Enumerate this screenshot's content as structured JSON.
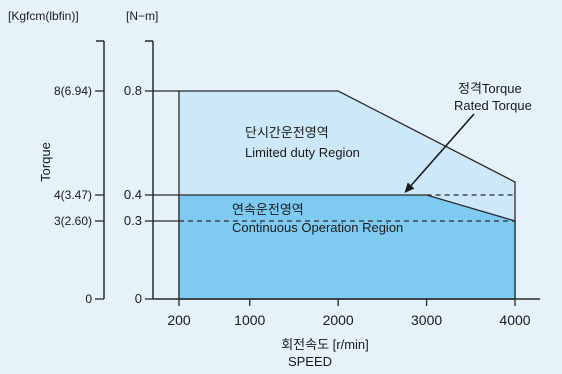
{
  "chart_data": {
    "type": "area",
    "title": "",
    "xlabel_korean": "회전속도 [r/min]",
    "xlabel": "SPEED",
    "ylabel": "Torque",
    "unit_left": "[Kgfcm(lbfin)]",
    "unit_right": "[N−m]",
    "xlim": [
      200,
      4000
    ],
    "ylim": [
      0,
      0.8
    ],
    "x_ticks": [
      {
        "value": 200,
        "label": "200"
      },
      {
        "value": 1000,
        "label": "1000"
      },
      {
        "value": 2000,
        "label": "2000"
      },
      {
        "value": 3000,
        "label": "3000"
      },
      {
        "value": 4000,
        "label": "4000"
      }
    ],
    "y_ticks_right": [
      {
        "value": 0.8,
        "label": "0.8"
      },
      {
        "value": 0.4,
        "label": "0.4"
      },
      {
        "value": 0.3,
        "label": "0.3"
      },
      {
        "value": 0,
        "label": "0"
      }
    ],
    "y_ticks_left": [
      {
        "value": 0.8,
        "label": "8(6.94)"
      },
      {
        "value": 0.4,
        "label": "4(3.47)"
      },
      {
        "value": 0.3,
        "label": "3(2.60)"
      },
      {
        "value": 0,
        "label": "0"
      }
    ],
    "regions": [
      {
        "name": "Limited duty Region",
        "label_ko": "단시간운전영역",
        "label_en": "Limited duty Region",
        "color": "#cde9f9",
        "label_at": {
          "x": 2000,
          "y": 0.6
        },
        "points": [
          [
            200,
            0
          ],
          [
            200,
            0.8
          ],
          [
            2000,
            0.8
          ],
          [
            4000,
            0.45
          ],
          [
            4000,
            0
          ]
        ]
      },
      {
        "name": "Continuous Operation Region",
        "label_ko": "연속운전영역",
        "label_en": "Continuous Operation Region",
        "color": "#7fcaf0",
        "label_at": {
          "x": 1500,
          "y": 0.33
        },
        "points": [
          [
            200,
            0
          ],
          [
            200,
            0.4
          ],
          [
            3000,
            0.4
          ],
          [
            4000,
            0.3
          ],
          [
            4000,
            0
          ]
        ]
      }
    ],
    "reference_lines": [
      {
        "name": "rated-torque-0.4",
        "y": 0.4,
        "x_from": 3000,
        "x_to": 4000,
        "style": "dashed"
      },
      {
        "name": "rated-torque-0.3",
        "y": 0.3,
        "x_from": 200,
        "x_to": 4000,
        "style": "dashed"
      }
    ],
    "annotation": {
      "label_ko": "정격Torque",
      "label_en": "Rated Torque",
      "points_to": {
        "x": 2750,
        "y": 0.4
      }
    },
    "colors": {
      "background": "#e6f2fa",
      "line": "#2a2a2a"
    }
  }
}
